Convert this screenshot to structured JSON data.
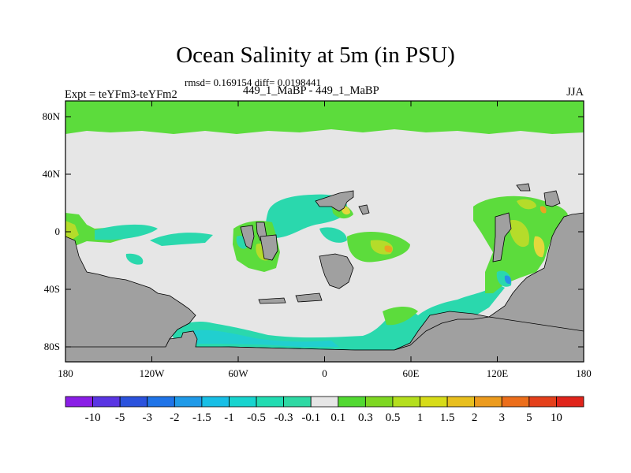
{
  "header": {
    "title": "Ocean Salinity at 5m (in PSU)",
    "stats": "rmsd= 0.169154 diff= 0.0198441",
    "experiment_ids": "449_1_MaBP - 449_1_MaBP",
    "expt_label": "Expt = teYFm3-teYFm2",
    "season": "JJA"
  },
  "axes": {
    "y_ticks": [
      "80N",
      "40N",
      "0",
      "40S",
      "80S"
    ],
    "x_ticks": [
      "180",
      "120W",
      "60W",
      "0",
      "60E",
      "120E",
      "180"
    ]
  },
  "colorbar": {
    "labels": [
      "-10",
      "-5",
      "-3",
      "-2",
      "-1.5",
      "-1",
      "-0.5",
      "-0.3",
      "-0.1",
      "0.1",
      "0.3",
      "0.5",
      "1",
      "1.5",
      "2",
      "3",
      "5",
      "10"
    ],
    "colors": [
      "#8a1ee6",
      "#5a35e3",
      "#2b52dd",
      "#1f74e8",
      "#1f9ae8",
      "#18bfe6",
      "#18d4cf",
      "#22dcb2",
      "#2fd9a4",
      "#e6e6e6",
      "#52d932",
      "#7ed722",
      "#b4df1e",
      "#d7dc19",
      "#e8bf1e",
      "#ec9b1e",
      "#ec6e1b",
      "#e4401b",
      "#e0241b"
    ]
  },
  "map_colors": {
    "land": "#a0a0a0",
    "ocean_neutral": "#e6e6e6",
    "green": "#5cdc3c",
    "teal": "#2ad8ad",
    "cyan": "#21cfcf",
    "yellow_green": "#b5dc2a",
    "yellow": "#e3d83c",
    "orange": "#e9a521",
    "blue": "#2690e8"
  }
}
